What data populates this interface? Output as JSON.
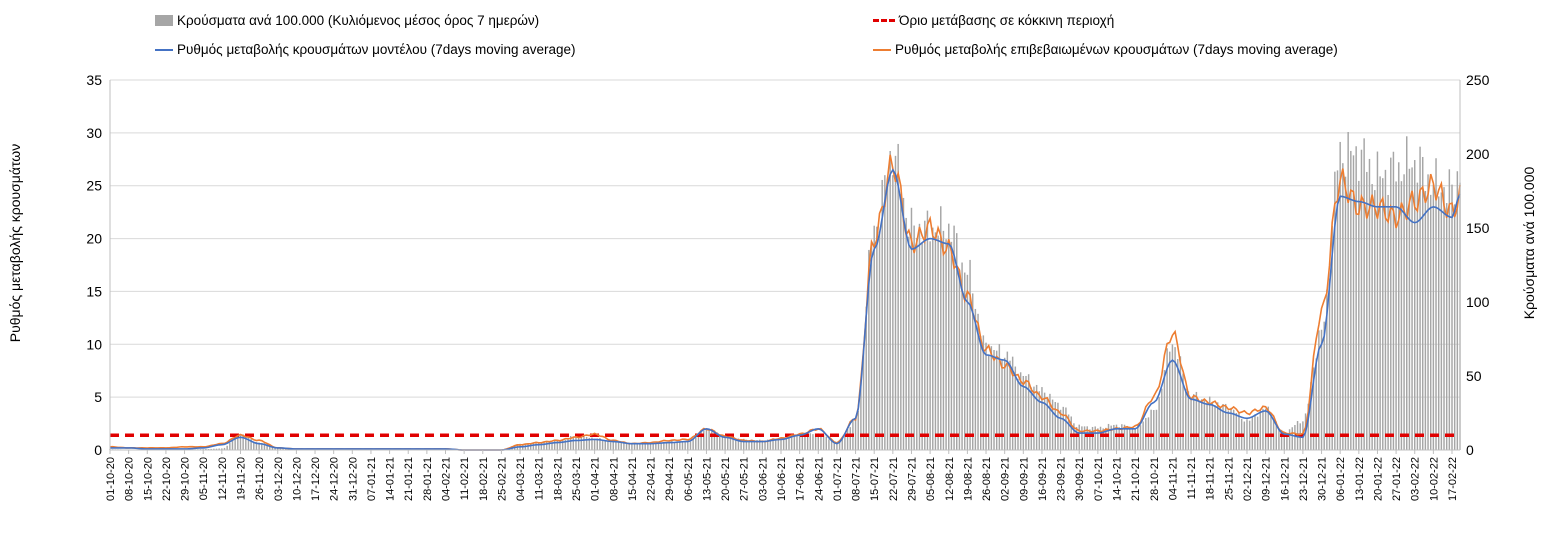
{
  "chart_data": {
    "type": "bar",
    "title": "",
    "legend": {
      "placement": "top",
      "bars_label": "Κρούσματα ανά 100.000 (Κυλιόμενος μέσος όρος 7 ημερών)",
      "threshold_label": "Όριο μετάβασης σε κόκκινη περιοχή",
      "model_label": "Ρυθμός μεταβολής κρουσμάτων μοντέλου (7days moving average)",
      "confirmed_label": "Ρυθμός μεταβολής επιβεβαιωμένων κρουσμάτων (7days moving average)"
    },
    "ylabel_left": "Ρυθμός μεταβολής κρουσμάτων",
    "ylabel_right": "Κρούσματα ανά 100.000",
    "y_left_range": [
      0,
      35
    ],
    "y_left_ticks": [
      "0",
      "5",
      "10",
      "15",
      "20",
      "25",
      "30",
      "35"
    ],
    "y_right_range": [
      0,
      250
    ],
    "y_right_ticks": [
      "0",
      "50",
      "100",
      "150",
      "200",
      "250"
    ],
    "grid": true,
    "colors": {
      "bars": "#a6a6a6",
      "model": "#4472c4",
      "confirmed": "#ed7d31",
      "threshold": "#e00000",
      "grid": "#d9d9d9"
    },
    "threshold_value": 1.4,
    "x_tick_labels": [
      "01-10-20",
      "08-10-20",
      "15-10-20",
      "22-10-20",
      "29-10-20",
      "05-11-20",
      "12-11-20",
      "19-11-20",
      "26-11-20",
      "03-12-20",
      "10-12-20",
      "17-12-20",
      "24-12-20",
      "31-12-20",
      "07-01-21",
      "14-01-21",
      "21-01-21",
      "28-01-21",
      "04-02-21",
      "11-02-21",
      "18-02-21",
      "25-02-21",
      "04-03-21",
      "11-03-21",
      "18-03-21",
      "25-03-21",
      "01-04-21",
      "08-04-21",
      "15-04-21",
      "22-04-21",
      "29-04-21",
      "06-05-21",
      "13-05-21",
      "20-05-21",
      "27-05-21",
      "03-06-21",
      "10-06-21",
      "17-06-21",
      "24-06-21",
      "01-07-21",
      "08-07-21",
      "15-07-21",
      "22-07-21",
      "29-07-21",
      "05-08-21",
      "12-08-21",
      "19-08-21",
      "26-08-21",
      "02-09-21",
      "09-09-21",
      "16-09-21",
      "23-09-21",
      "30-09-21",
      "07-10-21",
      "14-10-21",
      "21-10-21",
      "28-10-21",
      "04-11-21",
      "11-11-21",
      "18-11-21",
      "25-11-21",
      "02-12-21",
      "09-12-21",
      "16-12-21",
      "23-12-21",
      "30-12-21",
      "06-01-22",
      "13-01-22",
      "20-01-22",
      "27-01-22",
      "03-02-22",
      "10-02-22",
      "17-02-22"
    ],
    "x_last_index": 507,
    "bars_weekly": [
      0.5,
      0.3,
      0.3,
      0.3,
      0.3,
      0.6,
      1.0,
      10.5,
      5.0,
      1.5,
      1.0,
      1.0,
      0.7,
      0.5,
      0.5,
      0.5,
      0.5,
      0.7,
      0.5,
      0.3,
      0.3,
      0.2,
      4.0,
      5.0,
      6.0,
      9.5,
      8.0,
      5.5,
      4.5,
      4.5,
      5.5,
      5.5,
      14.0,
      10.0,
      7.0,
      6.5,
      8.0,
      10.0,
      11.0,
      5.0,
      20.0,
      150.0,
      200.0,
      150.0,
      150.0,
      150.0,
      120.0,
      70.0,
      65.0,
      50.0,
      40.0,
      30.0,
      16.0,
      15.0,
      17.0,
      15.0,
      26.0,
      72.0,
      37.0,
      33.0,
      29.0,
      20.0,
      28.0,
      12.0,
      20.0,
      80.0,
      200.0,
      200.0,
      185.0,
      190.0,
      195.0,
      180.0,
      175.0
    ],
    "bars_last": 188.0,
    "model_weekly": [
      0.2,
      0.2,
      0.1,
      0.1,
      0.1,
      0.2,
      0.5,
      1.2,
      0.6,
      0.2,
      0.1,
      0.1,
      0.1,
      0.1,
      0.1,
      0.1,
      0.1,
      0.1,
      0.1,
      0.0,
      0.0,
      0.0,
      0.3,
      0.5,
      0.7,
      0.9,
      1.0,
      0.8,
      0.6,
      0.6,
      0.7,
      0.8,
      2.0,
      1.2,
      0.8,
      0.8,
      1.0,
      1.4,
      2.0,
      0.6,
      3.0,
      19.0,
      26.5,
      19.0,
      20.0,
      19.5,
      14.0,
      9.0,
      8.5,
      6.0,
      4.5,
      3.0,
      1.6,
      1.6,
      2.0,
      2.0,
      4.5,
      8.5,
      4.8,
      4.3,
      3.5,
      3.0,
      3.7,
      1.5,
      1.2,
      10.0,
      24.0,
      23.5,
      23.0,
      23.0,
      21.5,
      23.0,
      22.0
    ],
    "model_last": 24.2,
    "confirmed_weekly": [
      0.3,
      0.2,
      0.2,
      0.2,
      0.3,
      0.3,
      0.6,
      1.4,
      0.9,
      0.2,
      0.1,
      0.1,
      0.1,
      0.1,
      0.1,
      0.1,
      0.1,
      0.1,
      0.1,
      0.0,
      0.0,
      0.0,
      0.5,
      0.7,
      0.9,
      1.2,
      1.5,
      0.9,
      0.6,
      0.7,
      0.9,
      1.0,
      2.0,
      1.3,
      0.9,
      0.8,
      1.1,
      1.5,
      2.0,
      0.7,
      3.0,
      20.0,
      27.0,
      19.5,
      21.0,
      19.0,
      14.5,
      9.5,
      8.0,
      6.5,
      5.0,
      3.5,
      1.8,
      1.8,
      2.0,
      2.2,
      5.0,
      11.0,
      5.0,
      4.5,
      4.0,
      3.5,
      4.0,
      1.6,
      1.5,
      13.0,
      25.5,
      23.0,
      23.0,
      22.0,
      23.5,
      25.0,
      22.5
    ],
    "confirmed_last": 24.0
  }
}
